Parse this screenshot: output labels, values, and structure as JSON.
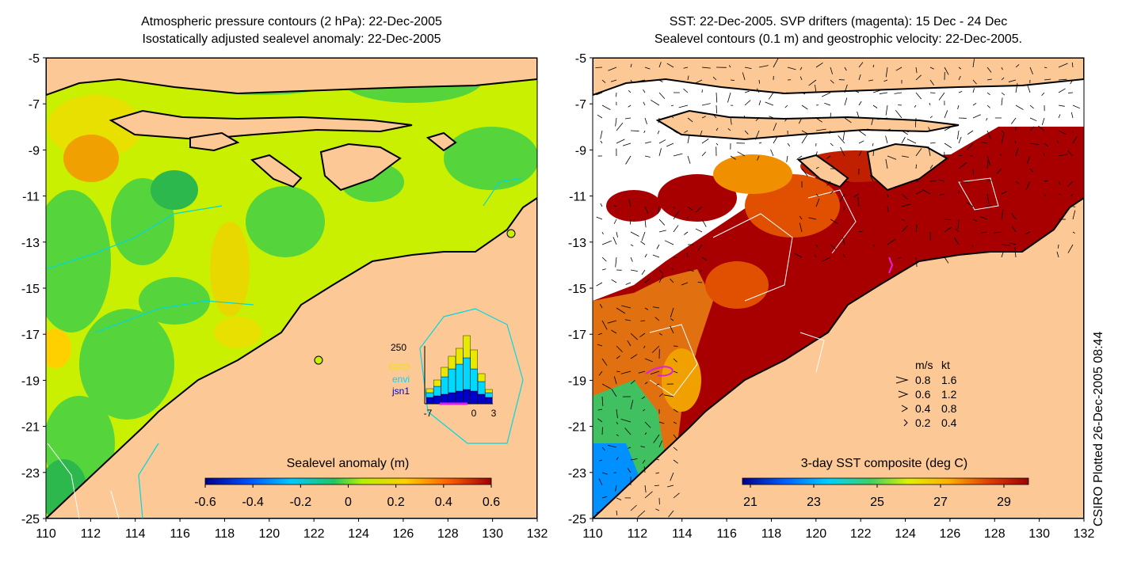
{
  "panels": {
    "left": {
      "title_line1": "Atmospheric pressure contours (2 hPa): 22-Dec-2005",
      "title_line2": "Isostatically adjusted sealevel anomaly: 22-Dec-2005",
      "colorbar_label": "Sealevel anomaly (m)",
      "colorbar_ticks": [
        "-0.6",
        "-0.4",
        "-0.2",
        "0",
        "0.2",
        "0.4",
        "0.6"
      ],
      "inset_histogram": {
        "ymax_label": "250",
        "legend": [
          {
            "label": "GFO",
            "color": "#e8e800"
          },
          {
            "label": "envi",
            "color": "#00d8ff"
          },
          {
            "label": "jsn1",
            "color": "#0000cc"
          }
        ],
        "x_ticks": [
          "-7",
          "0",
          "3"
        ]
      }
    },
    "right": {
      "title_line1": "SST: 22-Dec-2005. SVP drifters (magenta): 15 Dec - 24 Dec",
      "title_line2": "Sealevel contours (0.1 m) and geostrophic velocity: 22-Dec-2005.",
      "colorbar_label": "3-day SST composite (deg C)",
      "colorbar_ticks": [
        "21",
        "23",
        "25",
        "27",
        "29"
      ],
      "velocity_legend": {
        "header_ms": "m/s",
        "header_kt": "kt",
        "rows": [
          {
            "ms": "0.8",
            "kt": "1.6"
          },
          {
            "ms": "0.6",
            "kt": "1.2"
          },
          {
            "ms": "0.4",
            "kt": "0.8"
          },
          {
            "ms": "0.2",
            "kt": "0.4"
          }
        ]
      }
    }
  },
  "axes": {
    "x_ticks": [
      "110",
      "112",
      "114",
      "116",
      "118",
      "120",
      "122",
      "124",
      "126",
      "128",
      "130",
      "132"
    ],
    "y_ticks": [
      "-5",
      "-7",
      "-9",
      "-11",
      "-13",
      "-15",
      "-17",
      "-19",
      "-21",
      "-23",
      "-25"
    ]
  },
  "credit": "CSIRO Plotted 26-Dec-2005 08:44",
  "colors": {
    "land": "#fbc896",
    "sea_green": "#56d43c",
    "sea_yellowgreen": "#c8f000",
    "sst_darkred": "#a80000",
    "contour_cyan": "#00d8e0",
    "drifter_magenta": "#e020e0"
  }
}
